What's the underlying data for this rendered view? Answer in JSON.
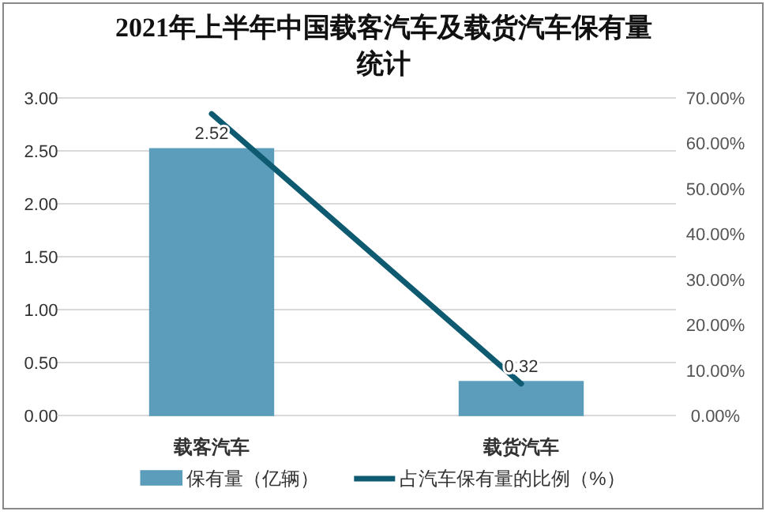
{
  "chart_data": {
    "type": "bar",
    "title": "2021年上半年中国载客汽车及载货汽车保有量统计",
    "categories": [
      "载客汽车",
      "载货汽车"
    ],
    "series": [
      {
        "name": "保有量（亿辆）",
        "color": "#5b9dbb",
        "values": [
          2.52,
          0.32
        ],
        "value_labels": [
          "2.52",
          "0.32"
        ]
      },
      {
        "name": "占汽车保有量的比例（%）",
        "type": "line",
        "axis": "y2",
        "color": "#0e5a70",
        "values": [
          66.5,
          7.0
        ]
      }
    ],
    "ylim": [
      0,
      3
    ],
    "yticks": [
      {
        "value": 0,
        "label": "0.00"
      },
      {
        "value": 0.5,
        "label": "0.50"
      },
      {
        "value": 1,
        "label": "1.00"
      },
      {
        "value": 1.5,
        "label": "1.50"
      },
      {
        "value": 2,
        "label": "2.00"
      },
      {
        "value": 2.5,
        "label": "2.50"
      },
      {
        "value": 3,
        "label": "3.00"
      }
    ],
    "y2lim": [
      0,
      70
    ],
    "y2ticks": [
      {
        "value": 0,
        "label": "0.00%"
      },
      {
        "value": 10,
        "label": "10.00%"
      },
      {
        "value": 20,
        "label": "20.00%"
      },
      {
        "value": 30,
        "label": "30.00%"
      },
      {
        "value": 40,
        "label": "40.00%"
      },
      {
        "value": 50,
        "label": "50.00%"
      },
      {
        "value": 60,
        "label": "60.00%"
      },
      {
        "value": 70,
        "label": "70.00%"
      }
    ],
    "grid": "y",
    "legend": "bottom"
  }
}
